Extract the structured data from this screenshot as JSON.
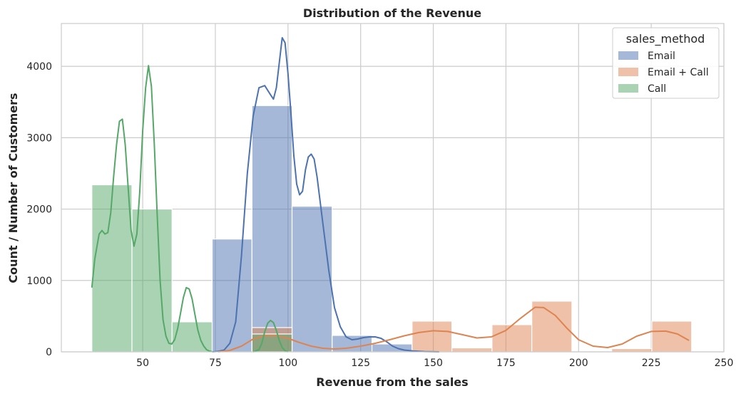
{
  "chart_data": {
    "type": "histogram",
    "title": "Distribution of the Revenue",
    "xlabel": "Revenue from the sales",
    "ylabel": "Count / Number of Customers",
    "xlim": [
      22,
      250
    ],
    "ylim": [
      0,
      4600
    ],
    "xticks": [
      50,
      75,
      100,
      125,
      150,
      175,
      200,
      225,
      250
    ],
    "yticks": [
      0,
      1000,
      2000,
      3000,
      4000
    ],
    "grid": true,
    "legend": {
      "title": "sales_method",
      "placement": "top-right"
    },
    "series": [
      {
        "name": "Email",
        "color": "#4c72b0",
        "bins": [
          {
            "x0": 73.9,
            "x1": 87.6,
            "count": 1580
          },
          {
            "x0": 87.6,
            "x1": 101.4,
            "count": 3450
          },
          {
            "x0": 101.4,
            "x1": 115.2,
            "count": 2040
          },
          {
            "x0": 115.2,
            "x1": 128.9,
            "count": 230
          },
          {
            "x0": 128.9,
            "x1": 142.7,
            "count": 110
          },
          {
            "x0": 142.7,
            "x1": 156.4,
            "count": 5
          }
        ],
        "kde": [
          [
            74,
            0
          ],
          [
            76,
            8
          ],
          [
            78,
            25
          ],
          [
            80,
            120
          ],
          [
            82,
            420
          ],
          [
            84,
            1350
          ],
          [
            86,
            2500
          ],
          [
            88,
            3300
          ],
          [
            90,
            3700
          ],
          [
            92,
            3730
          ],
          [
            94,
            3600
          ],
          [
            95,
            3540
          ],
          [
            96,
            3700
          ],
          [
            97,
            4050
          ],
          [
            98,
            4400
          ],
          [
            99,
            4330
          ],
          [
            100,
            3900
          ],
          [
            101,
            3350
          ],
          [
            102,
            2750
          ],
          [
            103,
            2350
          ],
          [
            104,
            2200
          ],
          [
            105,
            2250
          ],
          [
            106,
            2550
          ],
          [
            107,
            2730
          ],
          [
            108,
            2770
          ],
          [
            109,
            2700
          ],
          [
            110,
            2450
          ],
          [
            112,
            1800
          ],
          [
            114,
            1150
          ],
          [
            116,
            620
          ],
          [
            118,
            350
          ],
          [
            120,
            210
          ],
          [
            122,
            170
          ],
          [
            124,
            180
          ],
          [
            126,
            200
          ],
          [
            128,
            210
          ],
          [
            130,
            210
          ],
          [
            132,
            190
          ],
          [
            134,
            140
          ],
          [
            136,
            80
          ],
          [
            138,
            45
          ],
          [
            140,
            25
          ],
          [
            143,
            12
          ],
          [
            147,
            4
          ],
          [
            152,
            0
          ]
        ]
      },
      {
        "name": "Email + Call",
        "color": "#dd8452",
        "bins": [
          {
            "x0": 87.6,
            "x1": 101.4,
            "count": 340
          },
          {
            "x0": 142.7,
            "x1": 156.4,
            "count": 430
          },
          {
            "x0": 156.4,
            "x1": 170.2,
            "count": 55
          },
          {
            "x0": 170.2,
            "x1": 183.9,
            "count": 380
          },
          {
            "x0": 183.9,
            "x1": 197.7,
            "count": 710
          },
          {
            "x0": 211.4,
            "x1": 225.2,
            "count": 45
          },
          {
            "x0": 225.2,
            "x1": 238.9,
            "count": 430
          }
        ],
        "kde": [
          [
            76,
            0
          ],
          [
            80,
            20
          ],
          [
            84,
            80
          ],
          [
            88,
            180
          ],
          [
            92,
            225
          ],
          [
            96,
            225
          ],
          [
            100,
            190
          ],
          [
            104,
            130
          ],
          [
            108,
            80
          ],
          [
            112,
            50
          ],
          [
            116,
            40
          ],
          [
            120,
            50
          ],
          [
            125,
            80
          ],
          [
            130,
            120
          ],
          [
            135,
            170
          ],
          [
            140,
            225
          ],
          [
            145,
            270
          ],
          [
            150,
            295
          ],
          [
            155,
            285
          ],
          [
            160,
            240
          ],
          [
            165,
            195
          ],
          [
            170,
            210
          ],
          [
            175,
            300
          ],
          [
            180,
            470
          ],
          [
            185,
            625
          ],
          [
            188,
            620
          ],
          [
            192,
            510
          ],
          [
            196,
            330
          ],
          [
            200,
            170
          ],
          [
            205,
            80
          ],
          [
            210,
            60
          ],
          [
            215,
            110
          ],
          [
            220,
            220
          ],
          [
            225,
            285
          ],
          [
            230,
            290
          ],
          [
            234,
            250
          ],
          [
            238,
            160
          ]
        ]
      },
      {
        "name": "Call",
        "color": "#55a868",
        "bins": [
          {
            "x0": 32.5,
            "x1": 46.3,
            "count": 2340
          },
          {
            "x0": 46.3,
            "x1": 60.1,
            "count": 2000
          },
          {
            "x0": 60.1,
            "x1": 73.9,
            "count": 420
          },
          {
            "x0": 87.6,
            "x1": 101.4,
            "count": 250
          }
        ],
        "kde": [
          [
            32.5,
            900
          ],
          [
            33.5,
            1300
          ],
          [
            35,
            1650
          ],
          [
            36,
            1700
          ],
          [
            37,
            1650
          ],
          [
            38,
            1670
          ],
          [
            39,
            1950
          ],
          [
            40,
            2450
          ],
          [
            41,
            2900
          ],
          [
            42,
            3230
          ],
          [
            43,
            3260
          ],
          [
            44,
            2900
          ],
          [
            45,
            2300
          ],
          [
            46,
            1700
          ],
          [
            47,
            1480
          ],
          [
            48,
            1650
          ],
          [
            49,
            2250
          ],
          [
            50,
            3100
          ],
          [
            51,
            3700
          ],
          [
            52,
            4010
          ],
          [
            53,
            3720
          ],
          [
            54,
            2900
          ],
          [
            55,
            1900
          ],
          [
            56,
            1000
          ],
          [
            57,
            450
          ],
          [
            58,
            220
          ],
          [
            59,
            120
          ],
          [
            60,
            110
          ],
          [
            61,
            170
          ],
          [
            62,
            320
          ],
          [
            63,
            540
          ],
          [
            64,
            760
          ],
          [
            65,
            900
          ],
          [
            66,
            880
          ],
          [
            67,
            740
          ],
          [
            68,
            520
          ],
          [
            69,
            300
          ],
          [
            70,
            160
          ],
          [
            71,
            80
          ],
          [
            72,
            30
          ],
          [
            73,
            10
          ],
          [
            74,
            2
          ],
          [
            88,
            0
          ],
          [
            90,
            30
          ],
          [
            91,
            120
          ],
          [
            92,
            280
          ],
          [
            93,
            400
          ],
          [
            94,
            440
          ],
          [
            95,
            410
          ],
          [
            96,
            300
          ],
          [
            97,
            160
          ],
          [
            98,
            60
          ],
          [
            99,
            15
          ],
          [
            100,
            0
          ]
        ]
      }
    ]
  }
}
